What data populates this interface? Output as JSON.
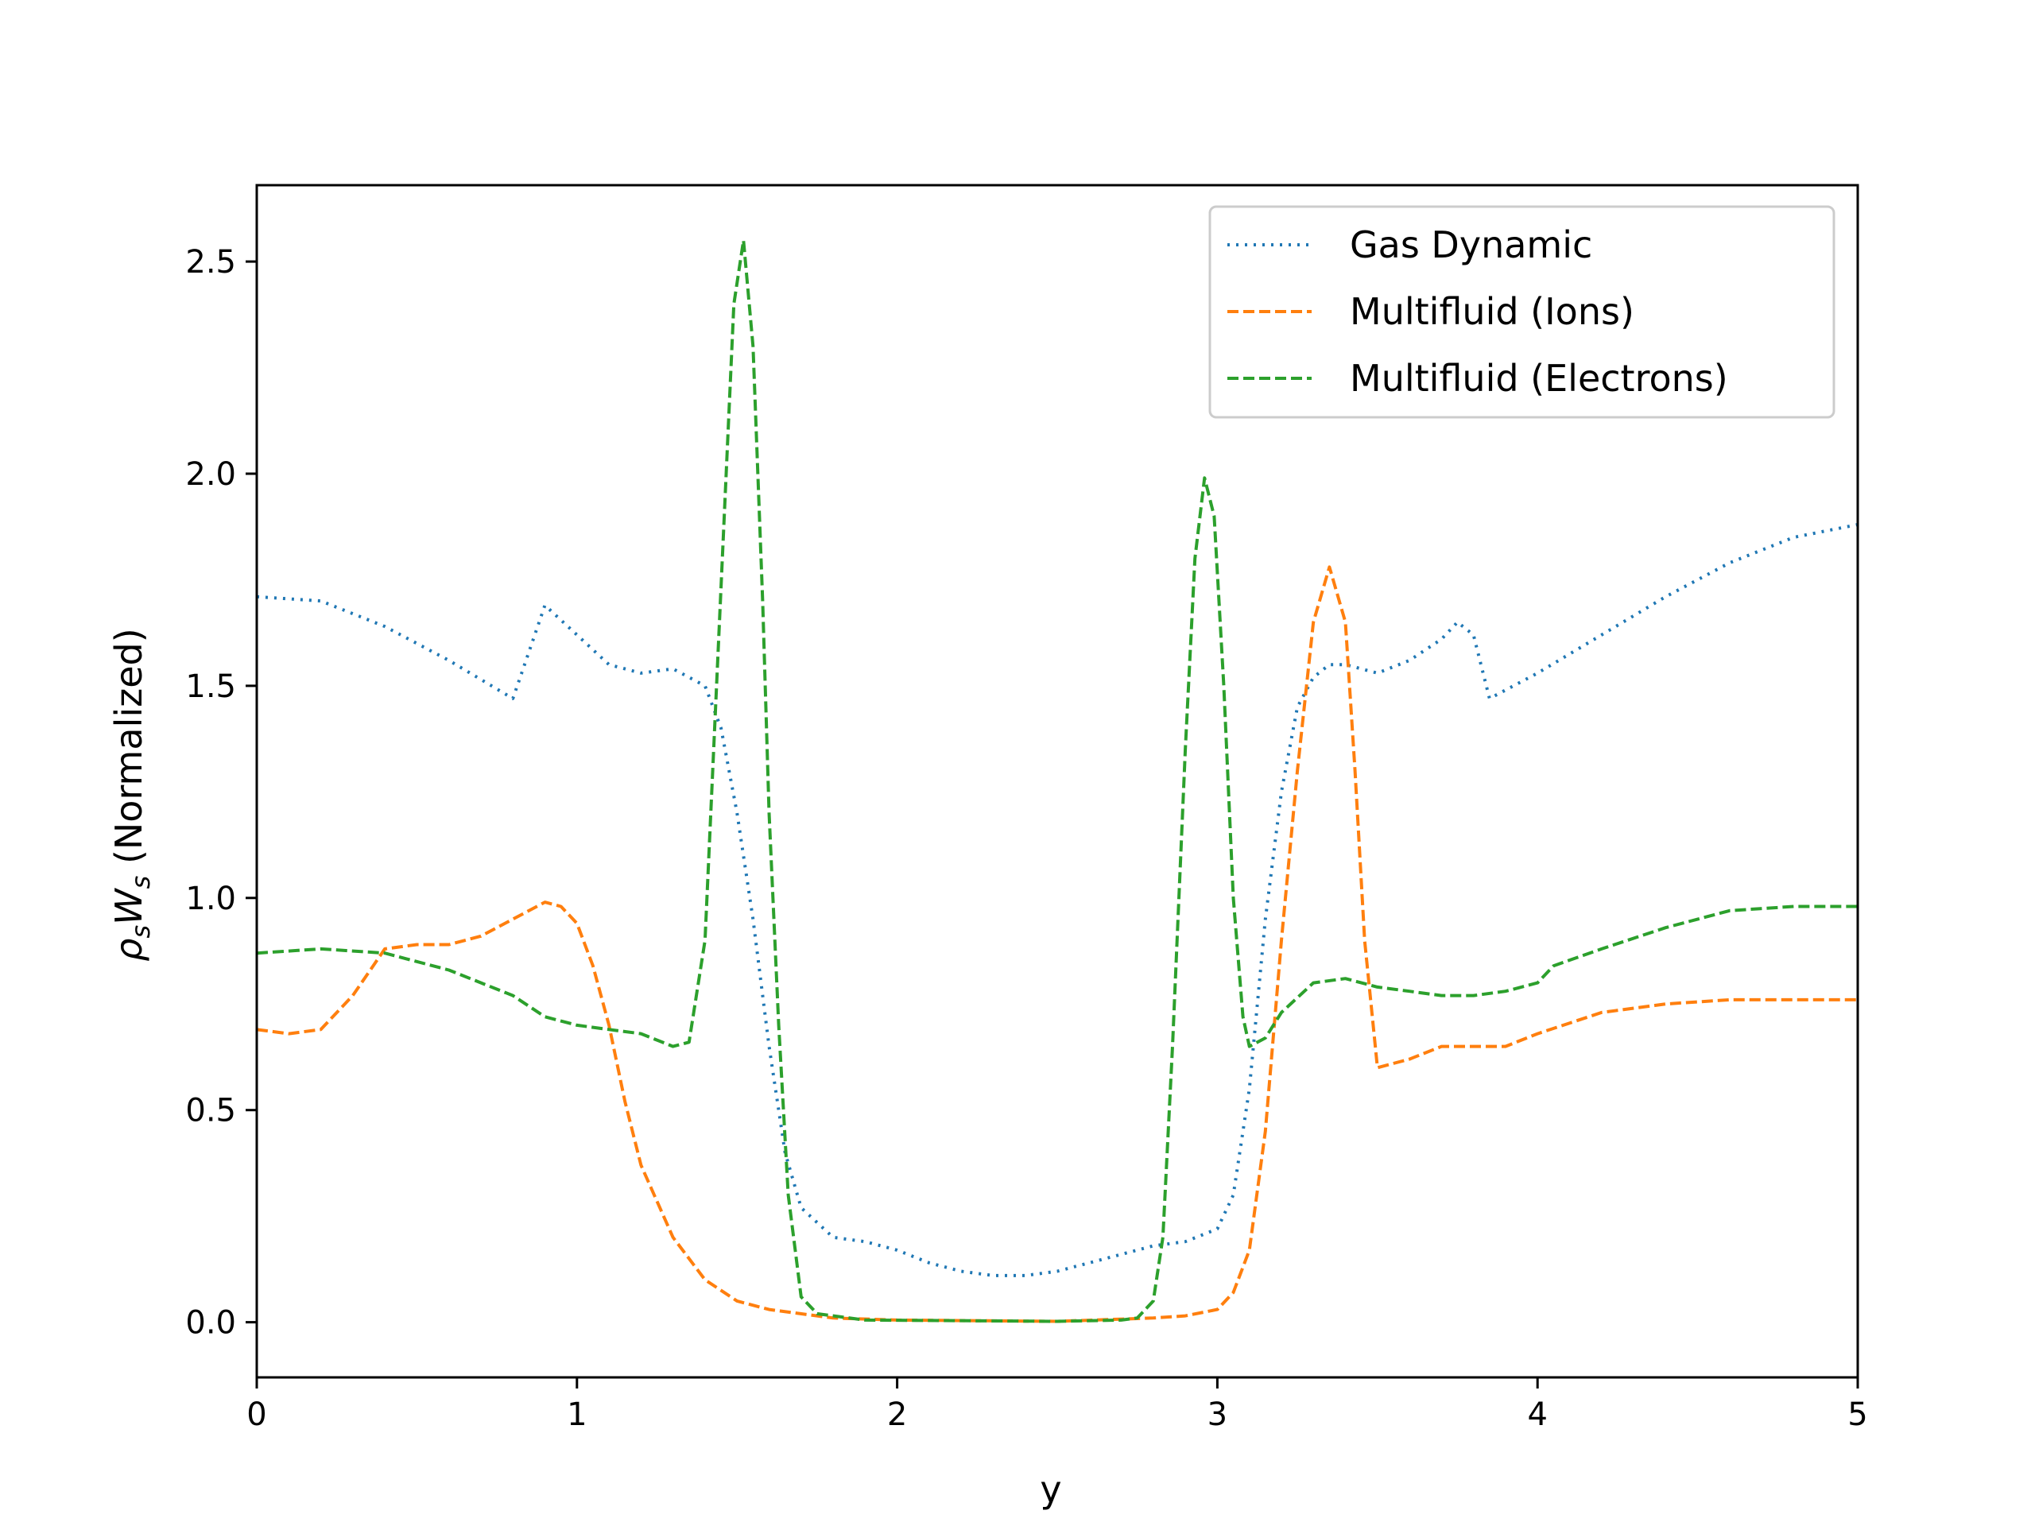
{
  "chart_data": {
    "type": "line",
    "xlabel": "y",
    "ylabel_parts": {
      "rho": "ρ",
      "sub1": "s",
      "w": "W",
      "sub2": "s",
      "rest": " (Normalized)"
    },
    "xlim": [
      0,
      5
    ],
    "ylim": [
      -0.13,
      2.68
    ],
    "xticks": [
      0,
      1,
      2,
      3,
      4,
      5
    ],
    "xtick_labels": [
      "0",
      "1",
      "2",
      "3",
      "4",
      "5"
    ],
    "yticks": [
      0.0,
      0.5,
      1.0,
      1.5,
      2.0,
      2.5
    ],
    "ytick_labels": [
      "0.0",
      "0.5",
      "1.0",
      "1.5",
      "2.0",
      "2.5"
    ],
    "grid": false,
    "legend_position": "top-right",
    "colors": {
      "gas": "#1f77b4",
      "ions": "#ff7f0e",
      "electrons": "#2ca02c"
    },
    "series": [
      {
        "name": "Gas Dynamic",
        "style": "dotted",
        "color": "#1f77b4",
        "points": [
          [
            0,
            1.71
          ],
          [
            0.2,
            1.7
          ],
          [
            0.4,
            1.64
          ],
          [
            0.6,
            1.56
          ],
          [
            0.8,
            1.47
          ],
          [
            0.85,
            1.58
          ],
          [
            0.9,
            1.69
          ],
          [
            1.0,
            1.62
          ],
          [
            1.1,
            1.55
          ],
          [
            1.2,
            1.53
          ],
          [
            1.3,
            1.54
          ],
          [
            1.4,
            1.5
          ],
          [
            1.45,
            1.4
          ],
          [
            1.5,
            1.2
          ],
          [
            1.55,
            0.95
          ],
          [
            1.6,
            0.65
          ],
          [
            1.65,
            0.4
          ],
          [
            1.7,
            0.27
          ],
          [
            1.8,
            0.2
          ],
          [
            1.9,
            0.19
          ],
          [
            2.0,
            0.17
          ],
          [
            2.1,
            0.14
          ],
          [
            2.2,
            0.12
          ],
          [
            2.3,
            0.11
          ],
          [
            2.4,
            0.11
          ],
          [
            2.5,
            0.12
          ],
          [
            2.6,
            0.14
          ],
          [
            2.7,
            0.16
          ],
          [
            2.8,
            0.18
          ],
          [
            2.9,
            0.19
          ],
          [
            3.0,
            0.22
          ],
          [
            3.05,
            0.3
          ],
          [
            3.1,
            0.55
          ],
          [
            3.15,
            0.95
          ],
          [
            3.2,
            1.25
          ],
          [
            3.25,
            1.45
          ],
          [
            3.3,
            1.52
          ],
          [
            3.35,
            1.55
          ],
          [
            3.4,
            1.55
          ],
          [
            3.5,
            1.53
          ],
          [
            3.6,
            1.56
          ],
          [
            3.7,
            1.61
          ],
          [
            3.75,
            1.65
          ],
          [
            3.8,
            1.62
          ],
          [
            3.85,
            1.47
          ],
          [
            4.0,
            1.53
          ],
          [
            4.2,
            1.62
          ],
          [
            4.4,
            1.71
          ],
          [
            4.6,
            1.79
          ],
          [
            4.8,
            1.85
          ],
          [
            5.0,
            1.88
          ]
        ]
      },
      {
        "name": "Multifluid (Ions)",
        "style": "dashed",
        "color": "#ff7f0e",
        "points": [
          [
            0,
            0.69
          ],
          [
            0.1,
            0.68
          ],
          [
            0.2,
            0.69
          ],
          [
            0.3,
            0.77
          ],
          [
            0.4,
            0.88
          ],
          [
            0.5,
            0.89
          ],
          [
            0.6,
            0.89
          ],
          [
            0.7,
            0.91
          ],
          [
            0.8,
            0.95
          ],
          [
            0.9,
            0.99
          ],
          [
            0.95,
            0.98
          ],
          [
            1.0,
            0.94
          ],
          [
            1.05,
            0.84
          ],
          [
            1.1,
            0.7
          ],
          [
            1.15,
            0.52
          ],
          [
            1.2,
            0.37
          ],
          [
            1.3,
            0.2
          ],
          [
            1.4,
            0.1
          ],
          [
            1.5,
            0.05
          ],
          [
            1.6,
            0.03
          ],
          [
            1.8,
            0.01
          ],
          [
            2.0,
            0.005
          ],
          [
            2.5,
            0.002
          ],
          [
            2.8,
            0.01
          ],
          [
            2.9,
            0.015
          ],
          [
            3.0,
            0.03
          ],
          [
            3.05,
            0.07
          ],
          [
            3.1,
            0.17
          ],
          [
            3.15,
            0.45
          ],
          [
            3.2,
            0.9
          ],
          [
            3.25,
            1.3
          ],
          [
            3.3,
            1.65
          ],
          [
            3.35,
            1.78
          ],
          [
            3.4,
            1.65
          ],
          [
            3.43,
            1.3
          ],
          [
            3.46,
            0.9
          ],
          [
            3.5,
            0.6
          ],
          [
            3.6,
            0.62
          ],
          [
            3.7,
            0.65
          ],
          [
            3.8,
            0.65
          ],
          [
            3.9,
            0.65
          ],
          [
            4.0,
            0.68
          ],
          [
            4.2,
            0.73
          ],
          [
            4.4,
            0.75
          ],
          [
            4.6,
            0.76
          ],
          [
            4.8,
            0.76
          ],
          [
            5.0,
            0.76
          ]
        ]
      },
      {
        "name": "Multifluid (Electrons)",
        "style": "dashed",
        "color": "#2ca02c",
        "points": [
          [
            0,
            0.87
          ],
          [
            0.2,
            0.88
          ],
          [
            0.4,
            0.87
          ],
          [
            0.6,
            0.83
          ],
          [
            0.8,
            0.77
          ],
          [
            0.9,
            0.72
          ],
          [
            1.0,
            0.7
          ],
          [
            1.1,
            0.69
          ],
          [
            1.2,
            0.68
          ],
          [
            1.3,
            0.65
          ],
          [
            1.35,
            0.66
          ],
          [
            1.4,
            0.9
          ],
          [
            1.43,
            1.4
          ],
          [
            1.46,
            1.9
          ],
          [
            1.49,
            2.4
          ],
          [
            1.52,
            2.55
          ],
          [
            1.55,
            2.3
          ],
          [
            1.58,
            1.7
          ],
          [
            1.6,
            1.2
          ],
          [
            1.63,
            0.7
          ],
          [
            1.66,
            0.3
          ],
          [
            1.7,
            0.06
          ],
          [
            1.75,
            0.02
          ],
          [
            1.9,
            0.005
          ],
          [
            2.5,
            0.002
          ],
          [
            2.7,
            0.005
          ],
          [
            2.75,
            0.01
          ],
          [
            2.8,
            0.05
          ],
          [
            2.83,
            0.2
          ],
          [
            2.86,
            0.65
          ],
          [
            2.9,
            1.35
          ],
          [
            2.93,
            1.8
          ],
          [
            2.96,
            1.99
          ],
          [
            2.99,
            1.9
          ],
          [
            3.02,
            1.5
          ],
          [
            3.05,
            1.0
          ],
          [
            3.08,
            0.72
          ],
          [
            3.1,
            0.65
          ],
          [
            3.15,
            0.67
          ],
          [
            3.2,
            0.73
          ],
          [
            3.3,
            0.8
          ],
          [
            3.4,
            0.81
          ],
          [
            3.5,
            0.79
          ],
          [
            3.6,
            0.78
          ],
          [
            3.7,
            0.77
          ],
          [
            3.8,
            0.77
          ],
          [
            3.9,
            0.78
          ],
          [
            4.0,
            0.8
          ],
          [
            4.05,
            0.84
          ],
          [
            4.2,
            0.88
          ],
          [
            4.4,
            0.93
          ],
          [
            4.6,
            0.97
          ],
          [
            4.8,
            0.98
          ],
          [
            5.0,
            0.98
          ]
        ]
      }
    ]
  }
}
